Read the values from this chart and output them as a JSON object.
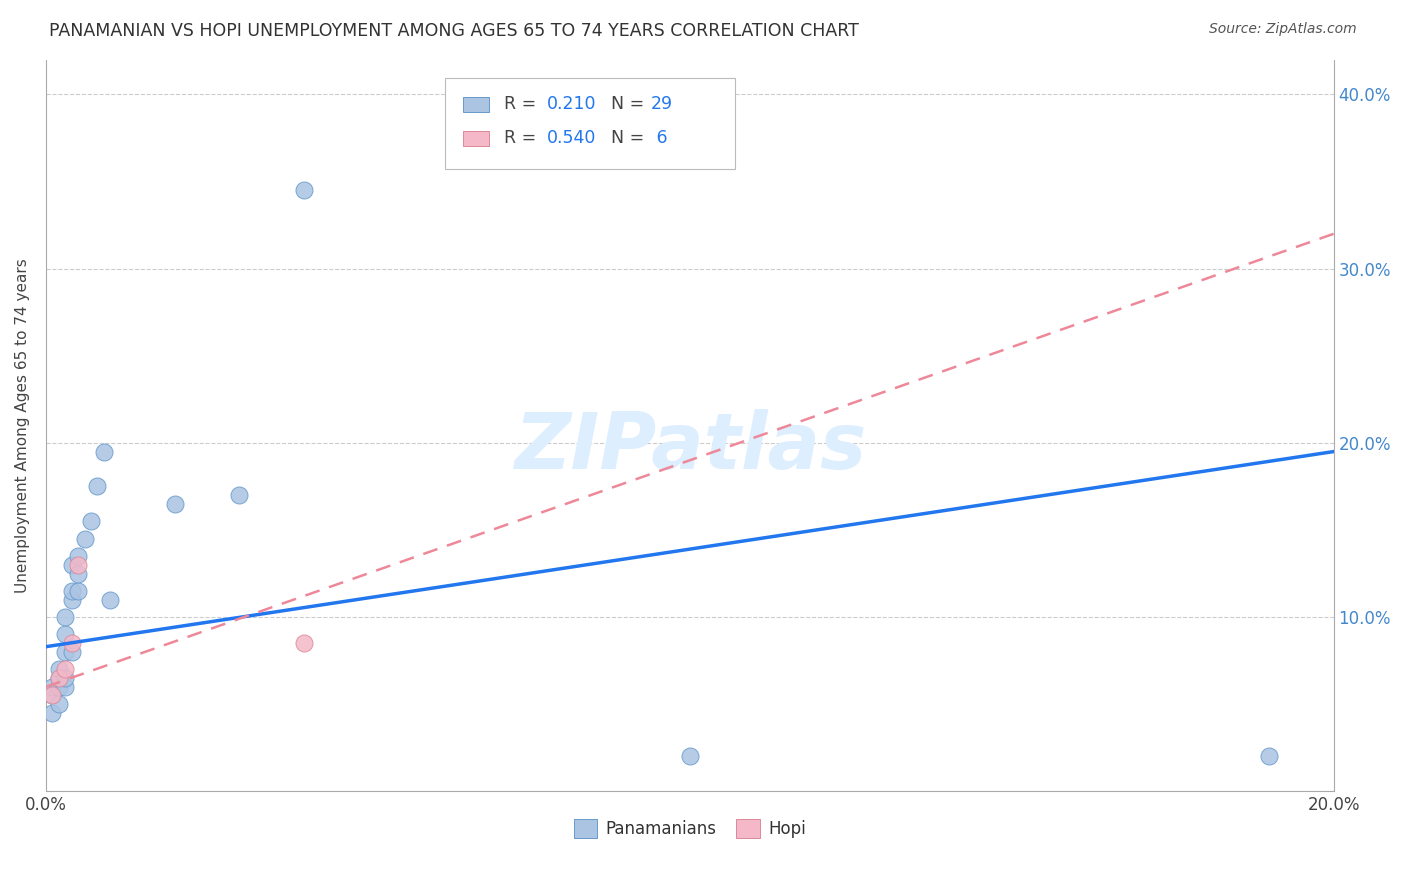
{
  "title": "PANAMANIAN VS HOPI UNEMPLOYMENT AMONG AGES 65 TO 74 YEARS CORRELATION CHART",
  "source": "Source: ZipAtlas.com",
  "ylabel": "Unemployment Among Ages 65 to 74 years",
  "xlim": [
    0.0,
    0.2
  ],
  "ylim": [
    0.0,
    0.42
  ],
  "xtick_positions": [
    0.0,
    0.02,
    0.04,
    0.06,
    0.08,
    0.1,
    0.12,
    0.14,
    0.16,
    0.18,
    0.2
  ],
  "xtick_labels": [
    "0.0%",
    "",
    "",
    "",
    "",
    "",
    "",
    "",
    "",
    "",
    "20.0%"
  ],
  "ytick_positions": [
    0.0,
    0.1,
    0.2,
    0.3,
    0.4
  ],
  "ytick_labels": [
    "",
    "10.0%",
    "20.0%",
    "30.0%",
    "40.0%"
  ],
  "panamanian_color": "#aac4e2",
  "hopi_color": "#f4b8c8",
  "pan_edge_color": "#6699cc",
  "hopi_edge_color": "#dd8899",
  "trend_pan_color": "#2277ee",
  "trend_hopi_color": "#ee8899",
  "watermark_color": "#ddeeff",
  "pan_R": "0.210",
  "pan_N": "29",
  "hopi_R": "0.540",
  "hopi_N": "6",
  "pan_x": [
    0.001,
    0.001,
    0.001,
    0.002,
    0.002,
    0.002,
    0.002,
    0.003,
    0.003,
    0.003,
    0.003,
    0.003,
    0.004,
    0.004,
    0.004,
    0.004,
    0.005,
    0.005,
    0.005,
    0.006,
    0.007,
    0.008,
    0.009,
    0.01,
    0.02,
    0.03,
    0.04,
    0.1,
    0.19
  ],
  "pan_y": [
    0.045,
    0.055,
    0.06,
    0.05,
    0.06,
    0.065,
    0.07,
    0.06,
    0.065,
    0.08,
    0.09,
    0.1,
    0.08,
    0.11,
    0.115,
    0.13,
    0.115,
    0.125,
    0.135,
    0.145,
    0.155,
    0.175,
    0.195,
    0.11,
    0.165,
    0.17,
    0.345,
    0.02,
    0.02
  ],
  "hopi_x": [
    0.001,
    0.002,
    0.003,
    0.004,
    0.005,
    0.04
  ],
  "hopi_y": [
    0.055,
    0.065,
    0.07,
    0.085,
    0.13,
    0.085
  ],
  "trend_pan_x0": 0.0,
  "trend_pan_y0": 0.083,
  "trend_pan_x1": 0.2,
  "trend_pan_y1": 0.195,
  "trend_hopi_x0": 0.0,
  "trend_hopi_y0": 0.06,
  "trend_hopi_x1": 0.2,
  "trend_hopi_y1": 0.32
}
